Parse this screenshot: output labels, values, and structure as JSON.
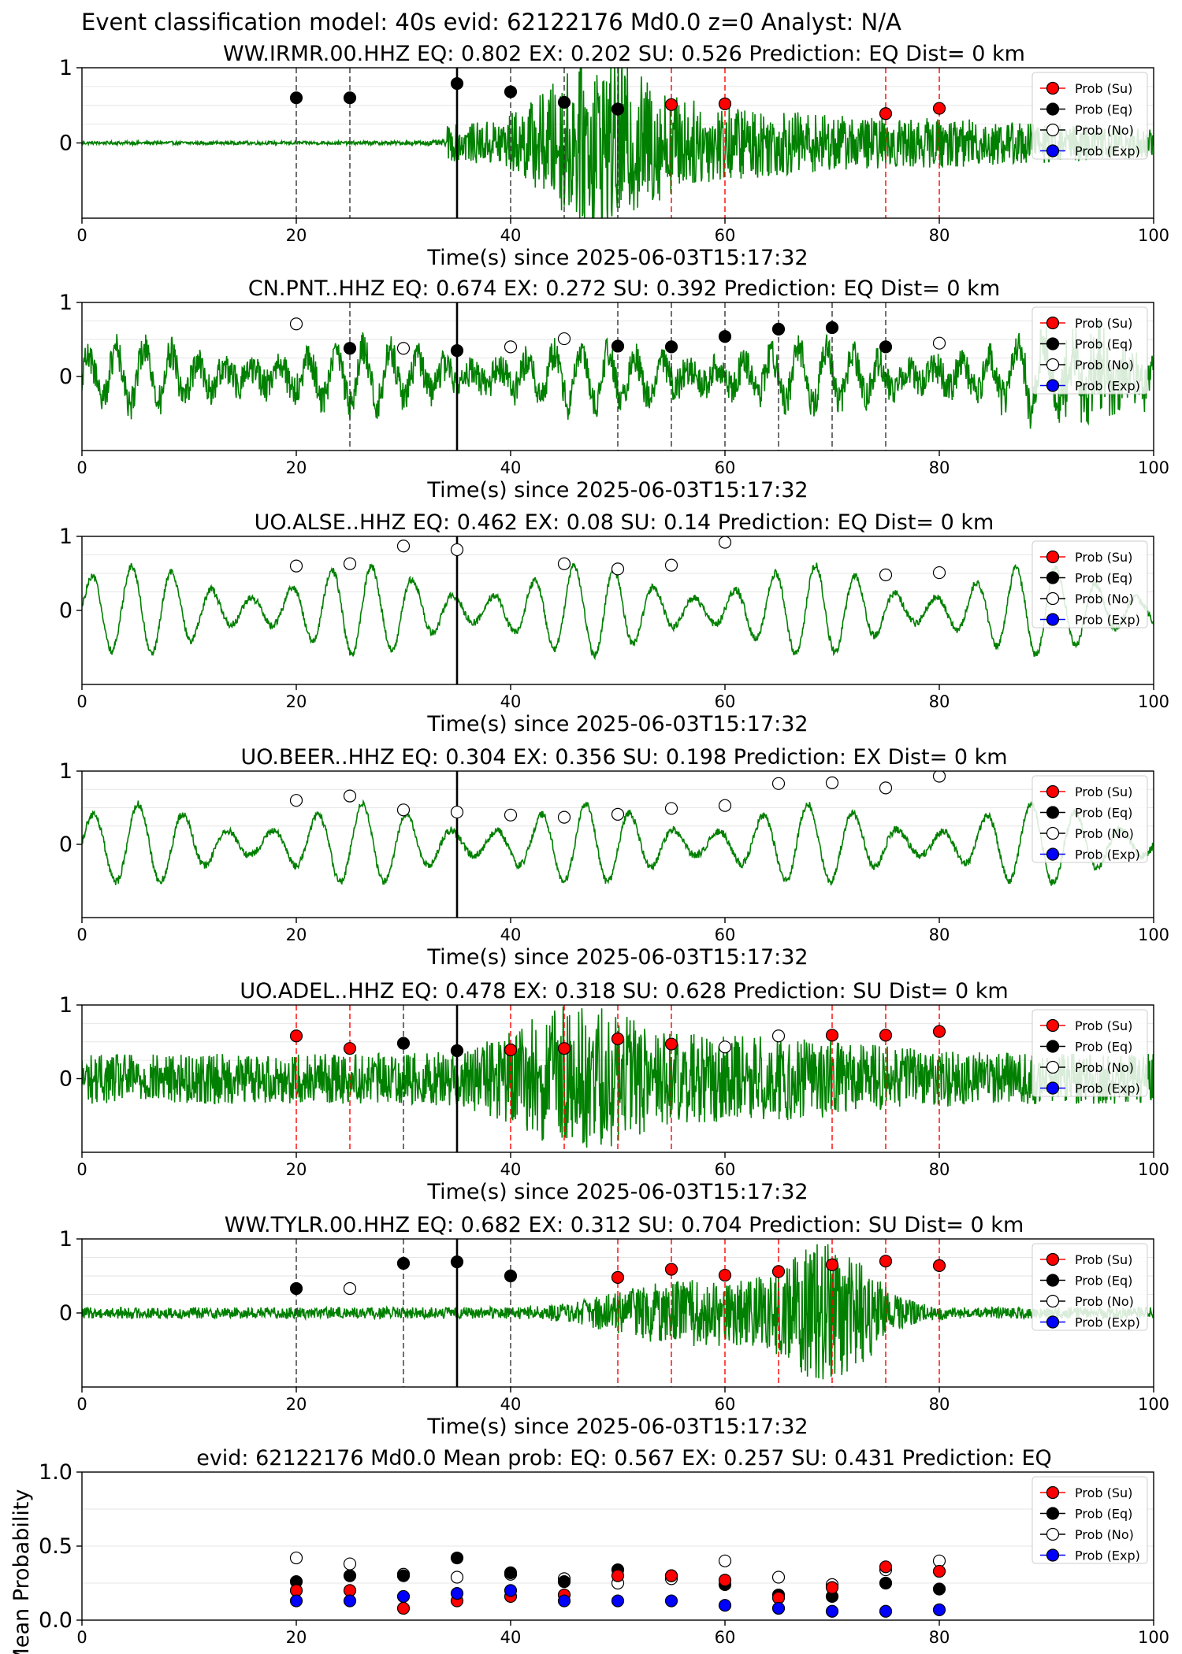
{
  "figure_title": "Event classification model: 40s evid: 62122176 Md0.0 z=0 Analyst: N/A",
  "legend": [
    {
      "label": "Prob (Su)",
      "color": "#ff0000"
    },
    {
      "label": "Prob (Eq)",
      "color": "#000000"
    },
    {
      "label": "Prob (No)",
      "color": "#ffffff"
    },
    {
      "label": "Prob (Exp)",
      "color": "#0000ff"
    }
  ],
  "colors": {
    "waveform": "#008000",
    "su_line": "#ff0000",
    "eq_line": "#000000",
    "pick_line": "#000000"
  },
  "chart_data": [
    {
      "type": "line",
      "title": "WW.IRMR.00.HHZ   EQ: 0.802  EX: 0.202  SU: 0.526   Prediction: EQ    Dist= 0 km",
      "xlabel": "Time(s) since 2025-06-03T15:17:32",
      "xlim": [
        0,
        100
      ],
      "ylim": [
        -1,
        1
      ],
      "xticks": [
        "0",
        "20",
        "40",
        "60",
        "80",
        "100"
      ],
      "yticks": [
        "0",
        "1"
      ],
      "pick_time": 35,
      "waveform": {
        "onset": 34,
        "noise": 0.02,
        "amp": 0.18,
        "bursts": [
          [
            48,
            6,
            0.7
          ],
          [
            58,
            14,
            0.25
          ],
          [
            82,
            10,
            0.08
          ]
        ]
      },
      "markers": [
        {
          "t": 20,
          "p": 0.6,
          "c": "eq"
        },
        {
          "t": 25,
          "p": 0.6,
          "c": "eq"
        },
        {
          "t": 35,
          "p": 0.79,
          "c": "eq"
        },
        {
          "t": 40,
          "p": 0.68,
          "c": "eq"
        },
        {
          "t": 45,
          "p": 0.54,
          "c": "eq"
        },
        {
          "t": 50,
          "p": 0.45,
          "c": "eq"
        },
        {
          "t": 55,
          "p": 0.51,
          "c": "su"
        },
        {
          "t": 60,
          "p": 0.52,
          "c": "su"
        },
        {
          "t": 75,
          "p": 0.39,
          "c": "su"
        },
        {
          "t": 80,
          "p": 0.46,
          "c": "su"
        }
      ],
      "vlines": [
        {
          "t": 20,
          "c": "eq"
        },
        {
          "t": 25,
          "c": "eq"
        },
        {
          "t": 40,
          "c": "eq"
        },
        {
          "t": 45,
          "c": "eq"
        },
        {
          "t": 50,
          "c": "eq"
        },
        {
          "t": 55,
          "c": "su"
        },
        {
          "t": 60,
          "c": "su"
        },
        {
          "t": 75,
          "c": "su"
        },
        {
          "t": 80,
          "c": "su"
        }
      ]
    },
    {
      "type": "line",
      "title": "CN.PNT..HHZ   EQ: 0.674  EX: 0.272  SU: 0.392   Prediction: EQ    Dist= 0 km",
      "xlabel": "Time(s) since 2025-06-03T15:17:32",
      "xlim": [
        0,
        100
      ],
      "ylim": [
        -1,
        1
      ],
      "xticks": [
        "0",
        "20",
        "40",
        "60",
        "80",
        "100"
      ],
      "yticks": [
        "0",
        "1"
      ],
      "pick_time": 35,
      "waveform": {
        "onset": 0,
        "noise": 0.22,
        "amp": 0.35,
        "period": 2.6,
        "bursts": [
          [
            94,
            6,
            0.5
          ]
        ]
      },
      "markers": [
        {
          "t": 20,
          "p": 0.71,
          "c": "no"
        },
        {
          "t": 25,
          "p": 0.38,
          "c": "eq"
        },
        {
          "t": 30,
          "p": 0.38,
          "c": "no"
        },
        {
          "t": 35,
          "p": 0.35,
          "c": "eq"
        },
        {
          "t": 40,
          "p": 0.4,
          "c": "no"
        },
        {
          "t": 45,
          "p": 0.51,
          "c": "no"
        },
        {
          "t": 50,
          "p": 0.41,
          "c": "eq"
        },
        {
          "t": 55,
          "p": 0.4,
          "c": "eq"
        },
        {
          "t": 60,
          "p": 0.54,
          "c": "eq"
        },
        {
          "t": 65,
          "p": 0.64,
          "c": "eq"
        },
        {
          "t": 70,
          "p": 0.66,
          "c": "eq"
        },
        {
          "t": 75,
          "p": 0.4,
          "c": "eq"
        },
        {
          "t": 80,
          "p": 0.45,
          "c": "no"
        }
      ],
      "vlines": [
        {
          "t": 25,
          "c": "eq"
        },
        {
          "t": 50,
          "c": "eq"
        },
        {
          "t": 55,
          "c": "eq"
        },
        {
          "t": 60,
          "c": "eq"
        },
        {
          "t": 65,
          "c": "eq"
        },
        {
          "t": 70,
          "c": "eq"
        },
        {
          "t": 75,
          "c": "eq"
        }
      ]
    },
    {
      "type": "line",
      "title": "UO.ALSE..HHZ   EQ: 0.462  EX: 0.08  SU: 0.14   Prediction: EQ    Dist= 0 km",
      "xlabel": "Time(s) since 2025-06-03T15:17:32",
      "xlim": [
        0,
        100
      ],
      "ylim": [
        -1,
        1
      ],
      "xticks": [
        "0",
        "20",
        "40",
        "60",
        "80",
        "100"
      ],
      "yticks": [
        "0",
        "1"
      ],
      "pick_time": 35,
      "waveform": {
        "onset": 0,
        "noise": 0.05,
        "amp": 0.55,
        "period": 3.8,
        "bursts": []
      },
      "markers": [
        {
          "t": 20,
          "p": 0.6,
          "c": "no"
        },
        {
          "t": 25,
          "p": 0.63,
          "c": "no"
        },
        {
          "t": 30,
          "p": 0.87,
          "c": "no"
        },
        {
          "t": 35,
          "p": 0.82,
          "c": "no"
        },
        {
          "t": 45,
          "p": 0.63,
          "c": "no"
        },
        {
          "t": 50,
          "p": 0.56,
          "c": "no"
        },
        {
          "t": 55,
          "p": 0.61,
          "c": "no"
        },
        {
          "t": 60,
          "p": 0.92,
          "c": "no"
        },
        {
          "t": 75,
          "p": 0.48,
          "c": "no"
        },
        {
          "t": 80,
          "p": 0.51,
          "c": "no"
        }
      ],
      "vlines": []
    },
    {
      "type": "line",
      "title": "UO.BEER..HHZ   EQ: 0.304  EX: 0.356  SU: 0.198   Prediction: EX    Dist= 0 km",
      "xlabel": "Time(s) since 2025-06-03T15:17:32",
      "xlim": [
        0,
        100
      ],
      "ylim": [
        -1,
        1
      ],
      "xticks": [
        "0",
        "20",
        "40",
        "60",
        "80",
        "100"
      ],
      "yticks": [
        "0",
        "1"
      ],
      "pick_time": 35,
      "waveform": {
        "onset": 0,
        "noise": 0.05,
        "amp": 0.5,
        "period": 4.2,
        "bursts": []
      },
      "markers": [
        {
          "t": 20,
          "p": 0.6,
          "c": "no"
        },
        {
          "t": 25,
          "p": 0.66,
          "c": "no"
        },
        {
          "t": 30,
          "p": 0.47,
          "c": "no"
        },
        {
          "t": 35,
          "p": 0.44,
          "c": "no"
        },
        {
          "t": 40,
          "p": 0.4,
          "c": "no"
        },
        {
          "t": 45,
          "p": 0.37,
          "c": "no"
        },
        {
          "t": 50,
          "p": 0.41,
          "c": "no"
        },
        {
          "t": 55,
          "p": 0.49,
          "c": "no"
        },
        {
          "t": 60,
          "p": 0.53,
          "c": "no"
        },
        {
          "t": 65,
          "p": 0.83,
          "c": "no"
        },
        {
          "t": 70,
          "p": 0.84,
          "c": "no"
        },
        {
          "t": 75,
          "p": 0.77,
          "c": "no"
        },
        {
          "t": 80,
          "p": 0.93,
          "c": "no"
        }
      ],
      "vlines": []
    },
    {
      "type": "line",
      "title": "UO.ADEL..HHZ   EQ: 0.478  EX: 0.318  SU: 0.628   Prediction: SU    Dist= 0 km",
      "xlabel": "Time(s) since 2025-06-03T15:17:32",
      "xlim": [
        0,
        100
      ],
      "ylim": [
        -1,
        1
      ],
      "xticks": [
        "0",
        "20",
        "40",
        "60",
        "80",
        "100"
      ],
      "yticks": [
        "0",
        "1"
      ],
      "pick_time": 35,
      "waveform": {
        "onset": 0,
        "noise": 0.09,
        "amp": 0.22,
        "bursts": [
          [
            46,
            7,
            0.55
          ],
          [
            62,
            14,
            0.22
          ]
        ]
      },
      "markers": [
        {
          "t": 20,
          "p": 0.58,
          "c": "su"
        },
        {
          "t": 25,
          "p": 0.41,
          "c": "su"
        },
        {
          "t": 30,
          "p": 0.48,
          "c": "eq"
        },
        {
          "t": 35,
          "p": 0.38,
          "c": "eq"
        },
        {
          "t": 40,
          "p": 0.39,
          "c": "su"
        },
        {
          "t": 45,
          "p": 0.41,
          "c": "su"
        },
        {
          "t": 50,
          "p": 0.54,
          "c": "su"
        },
        {
          "t": 55,
          "p": 0.47,
          "c": "su"
        },
        {
          "t": 60,
          "p": 0.43,
          "c": "no"
        },
        {
          "t": 65,
          "p": 0.58,
          "c": "no"
        },
        {
          "t": 70,
          "p": 0.59,
          "c": "su"
        },
        {
          "t": 75,
          "p": 0.59,
          "c": "su"
        },
        {
          "t": 80,
          "p": 0.64,
          "c": "su"
        }
      ],
      "vlines": [
        {
          "t": 20,
          "c": "su"
        },
        {
          "t": 25,
          "c": "su"
        },
        {
          "t": 30,
          "c": "eq"
        },
        {
          "t": 40,
          "c": "su"
        },
        {
          "t": 45,
          "c": "su"
        },
        {
          "t": 50,
          "c": "su"
        },
        {
          "t": 55,
          "c": "su"
        },
        {
          "t": 70,
          "c": "su"
        },
        {
          "t": 75,
          "c": "su"
        },
        {
          "t": 80,
          "c": "su"
        }
      ]
    },
    {
      "type": "line",
      "title": "WW.TYLR.00.HHZ   EQ: 0.682  EX: 0.312  SU: 0.704   Prediction: SU    Dist= 0 km",
      "xlabel": "Time(s) since 2025-06-03T15:17:32",
      "xlim": [
        0,
        100
      ],
      "ylim": [
        -1,
        1
      ],
      "xticks": [
        "0",
        "20",
        "40",
        "60",
        "80",
        "100"
      ],
      "yticks": [
        "0",
        "1"
      ],
      "pick_time": 35,
      "waveform": {
        "onset": 0,
        "noise": 0.03,
        "amp": 0.04,
        "bursts": [
          [
            52,
            6,
            0.15
          ],
          [
            60,
            8,
            0.3
          ],
          [
            70,
            5,
            0.75
          ]
        ]
      },
      "markers": [
        {
          "t": 20,
          "p": 0.33,
          "c": "eq"
        },
        {
          "t": 25,
          "p": 0.33,
          "c": "no"
        },
        {
          "t": 30,
          "p": 0.67,
          "c": "eq"
        },
        {
          "t": 35,
          "p": 0.69,
          "c": "eq"
        },
        {
          "t": 40,
          "p": 0.5,
          "c": "eq"
        },
        {
          "t": 50,
          "p": 0.48,
          "c": "su"
        },
        {
          "t": 55,
          "p": 0.59,
          "c": "su"
        },
        {
          "t": 60,
          "p": 0.51,
          "c": "su"
        },
        {
          "t": 65,
          "p": 0.56,
          "c": "su"
        },
        {
          "t": 70,
          "p": 0.65,
          "c": "su"
        },
        {
          "t": 75,
          "p": 0.7,
          "c": "su"
        },
        {
          "t": 80,
          "p": 0.64,
          "c": "su"
        }
      ],
      "vlines": [
        {
          "t": 20,
          "c": "eq"
        },
        {
          "t": 30,
          "c": "eq"
        },
        {
          "t": 40,
          "c": "eq"
        },
        {
          "t": 50,
          "c": "su"
        },
        {
          "t": 55,
          "c": "su"
        },
        {
          "t": 60,
          "c": "su"
        },
        {
          "t": 65,
          "c": "su"
        },
        {
          "t": 70,
          "c": "su"
        },
        {
          "t": 75,
          "c": "su"
        },
        {
          "t": 80,
          "c": "su"
        }
      ]
    },
    {
      "type": "scatter",
      "title": "evid: 62122176  Md0.0   Mean prob:   EQ: 0.567  EX: 0.257  SU: 0.431   Prediction: EQ",
      "ylabel": "Mean Probability",
      "xlim": [
        0,
        100
      ],
      "ylim": [
        0,
        1
      ],
      "xticks": [
        "0",
        "20",
        "40",
        "60",
        "80",
        "100"
      ],
      "yticks": [
        "0.0",
        "0.5",
        "1.0"
      ],
      "x": [
        20,
        25,
        30,
        35,
        40,
        45,
        50,
        55,
        60,
        65,
        70,
        75,
        80
      ],
      "series": [
        {
          "key": "no",
          "values": [
            0.42,
            0.38,
            0.31,
            0.29,
            0.31,
            0.28,
            0.25,
            0.28,
            0.4,
            0.29,
            0.24,
            0.34,
            0.4
          ]
        },
        {
          "key": "eq",
          "values": [
            0.26,
            0.3,
            0.3,
            0.42,
            0.32,
            0.26,
            0.34,
            0.3,
            0.24,
            0.17,
            0.16,
            0.25,
            0.21
          ]
        },
        {
          "key": "su",
          "values": [
            0.2,
            0.2,
            0.08,
            0.13,
            0.16,
            0.17,
            0.3,
            0.3,
            0.27,
            0.15,
            0.22,
            0.36,
            0.33
          ]
        },
        {
          "key": "exp",
          "values": [
            0.13,
            0.13,
            0.16,
            0.18,
            0.2,
            0.13,
            0.13,
            0.13,
            0.1,
            0.08,
            0.06,
            0.06,
            0.07
          ]
        }
      ]
    }
  ]
}
